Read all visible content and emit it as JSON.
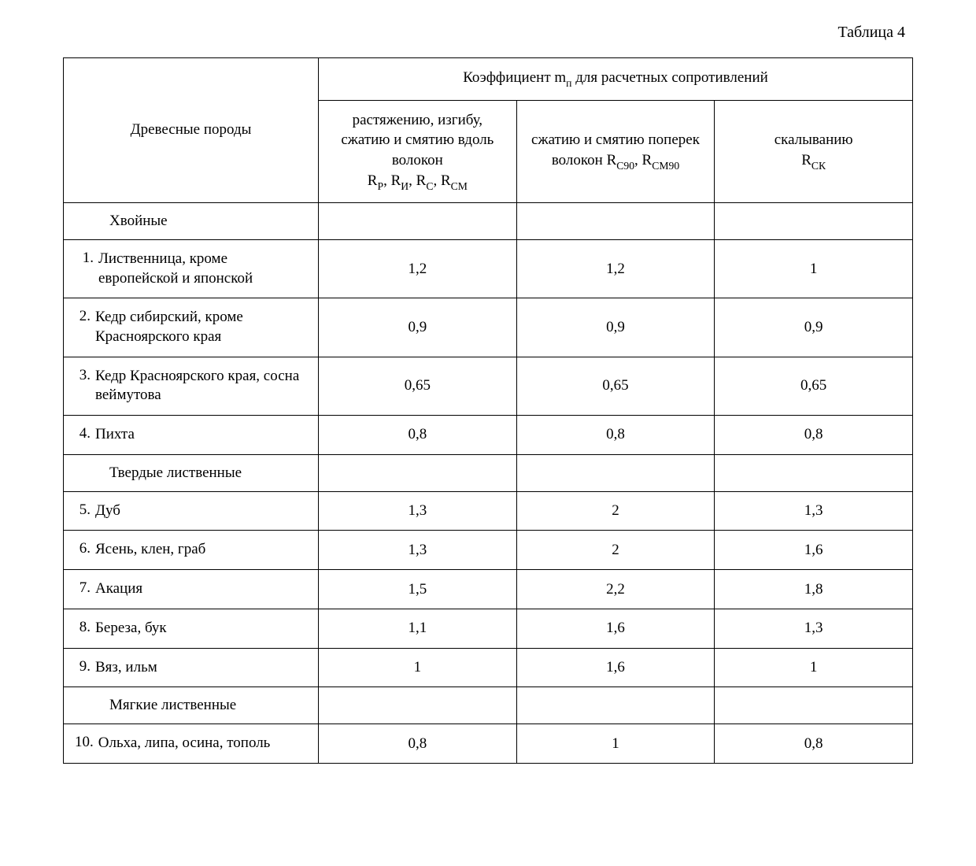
{
  "caption": "Таблица 4",
  "table": {
    "type": "table",
    "background_color": "#ffffff",
    "border_color": "#000000",
    "text_color": "#000000",
    "font_family": "Georgia, serif",
    "font_size_pt": 14,
    "columns": {
      "species_header": "Древесные породы",
      "coef_header": "Коэффициент mₚ для расчетных сопротивлений",
      "sub_col1_l1": "растяжению, изгибу, сжатию и смятию вдоль волокон",
      "sub_col1_l2": "Rᵨ, Rᵢ, Rc, Rсм",
      "sub_col2_l1": "сжатию и смятию поперек волокон Rс₉₀, Rсм₉₀",
      "sub_col3_l1": "скалыванию",
      "sub_col3_l2": "Rск"
    },
    "rows": [
      {
        "kind": "group",
        "label": "Хвойные"
      },
      {
        "kind": "item",
        "num": "1.",
        "name": "Лиственница, кроме европейской и японской",
        "v1": "1,2",
        "v2": "1,2",
        "v3": "1"
      },
      {
        "kind": "item",
        "num": "2.",
        "name": "Кедр сибирский, кроме Красноярского края",
        "v1": "0,9",
        "v2": "0,9",
        "v3": "0,9"
      },
      {
        "kind": "item",
        "num": "3.",
        "name": "Кедр Красноярского края, сосна веймутова",
        "v1": "0,65",
        "v2": "0,65",
        "v3": "0,65"
      },
      {
        "kind": "item",
        "num": "4.",
        "name": "Пихта",
        "v1": "0,8",
        "v2": "0,8",
        "v3": "0,8"
      },
      {
        "kind": "group",
        "label": "Твердые лиственные"
      },
      {
        "kind": "item",
        "num": "5.",
        "name": "Дуб",
        "v1": "1,3",
        "v2": "2",
        "v3": "1,3"
      },
      {
        "kind": "item",
        "num": "6.",
        "name": "Ясень, клен, граб",
        "v1": "1,3",
        "v2": "2",
        "v3": "1,6"
      },
      {
        "kind": "item",
        "num": "7.",
        "name": "Акация",
        "v1": "1,5",
        "v2": "2,2",
        "v3": "1,8"
      },
      {
        "kind": "item",
        "num": "8.",
        "name": "Береза, бук",
        "v1": "1,1",
        "v2": "1,6",
        "v3": "1,3"
      },
      {
        "kind": "item",
        "num": "9.",
        "name": "Вяз, ильм",
        "v1": "1",
        "v2": "1,6",
        "v3": "1"
      },
      {
        "kind": "group",
        "label": "Мягкие лиственные"
      },
      {
        "kind": "item",
        "num": "10.",
        "name": "Ольха, липа, осина, тополь",
        "v1": "0,8",
        "v2": "1",
        "v3": "0,8"
      }
    ],
    "column_widths_pct": [
      30,
      23.3,
      23.3,
      23.3
    ]
  }
}
